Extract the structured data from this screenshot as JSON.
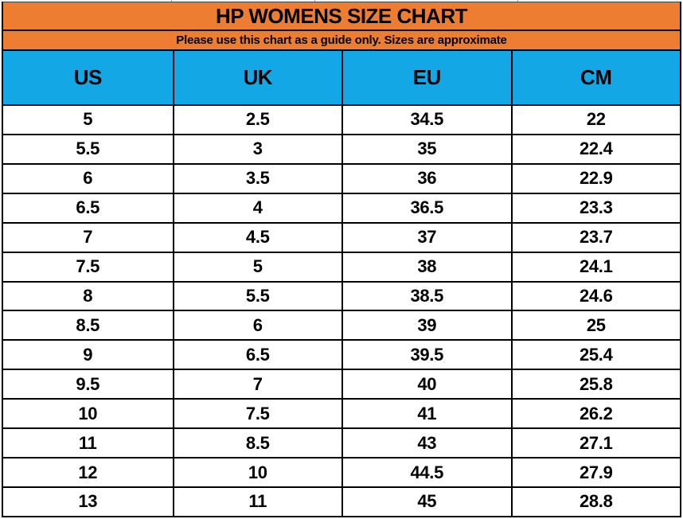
{
  "title": "HP WOMENS SIZE CHART",
  "subtitle": "Please use this chart as a guide only. Sizes are approximate",
  "colors": {
    "banner_bg": "#ED7D31",
    "column_header_bg": "#14A7E6",
    "grid_border": "#000000",
    "row_bg": "#FFFFFF",
    "text": "#000000"
  },
  "chart_data": {
    "type": "table",
    "title": "HP WOMENS SIZE CHART",
    "subtitle": "Please use this chart as a guide only. Sizes are approximate",
    "columns": [
      "US",
      "UK",
      "EU",
      "CM"
    ],
    "rows": [
      [
        "5",
        "2.5",
        "34.5",
        "22"
      ],
      [
        "5.5",
        "3",
        "35",
        "22.4"
      ],
      [
        "6",
        "3.5",
        "36",
        "22.9"
      ],
      [
        "6.5",
        "4",
        "36.5",
        "23.3"
      ],
      [
        "7",
        "4.5",
        "37",
        "23.7"
      ],
      [
        "7.5",
        "5",
        "38",
        "24.1"
      ],
      [
        "8",
        "5.5",
        "38.5",
        "24.6"
      ],
      [
        "8.5",
        "6",
        "39",
        "25"
      ],
      [
        "9",
        "6.5",
        "39.5",
        "25.4"
      ],
      [
        "9.5",
        "7",
        "40",
        "25.8"
      ],
      [
        "10",
        "7.5",
        "41",
        "26.2"
      ],
      [
        "11",
        "8.5",
        "43",
        "27.1"
      ],
      [
        "12",
        "10",
        "44.5",
        "27.9"
      ],
      [
        "13",
        "11",
        "45",
        "28.8"
      ]
    ]
  }
}
